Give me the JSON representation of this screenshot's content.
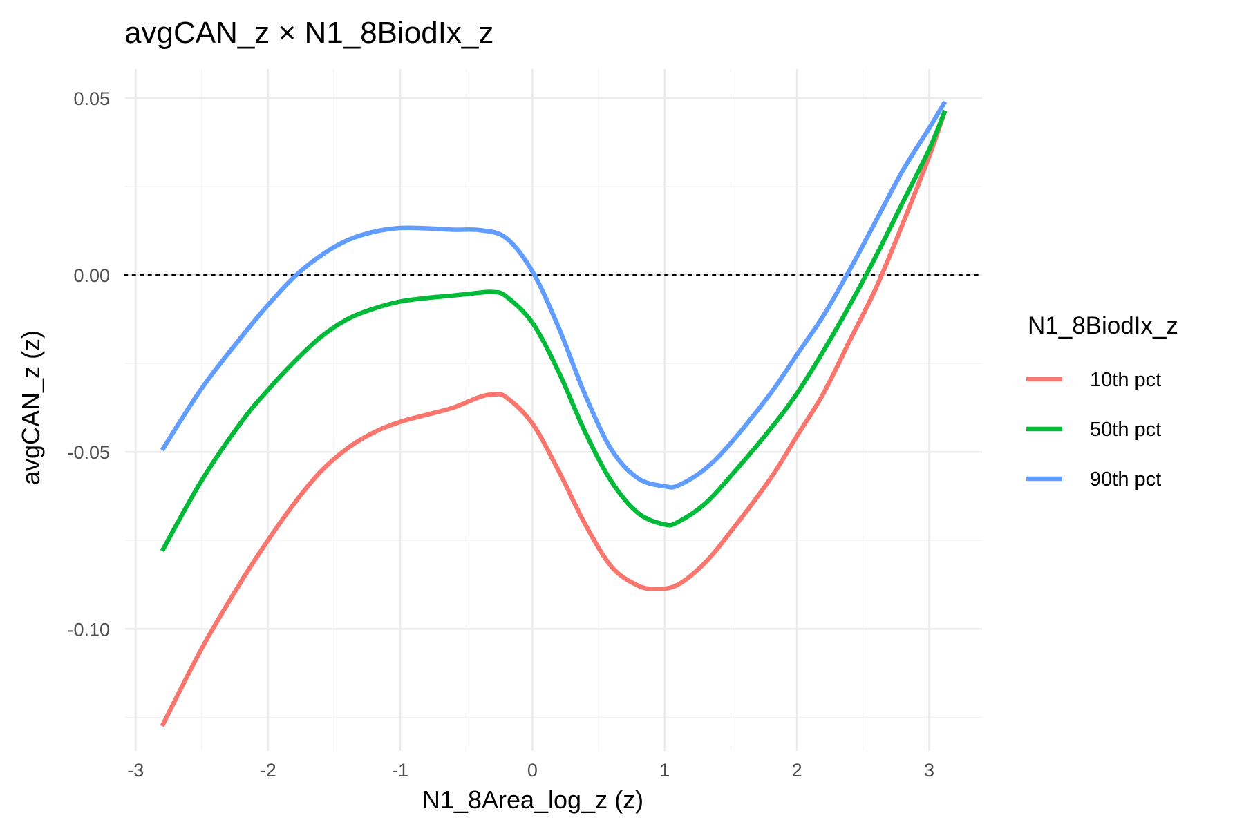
{
  "chart_data": {
    "type": "line",
    "title": "avgCAN_z × N1_8BiodIx_z",
    "xlabel": "N1_8Area_log_z (z)",
    "ylabel": "avgCAN_z (z)",
    "xlim": [
      -3.08,
      3.4
    ],
    "ylim": [
      -0.1345,
      0.0582
    ],
    "x_ticks": [
      -3,
      -2,
      -1,
      0,
      1,
      2,
      3
    ],
    "x_tick_labels": [
      "-3",
      "-2",
      "-1",
      "0",
      "1",
      "2",
      "3"
    ],
    "y_ticks": [
      -0.1,
      -0.05,
      0.0,
      0.05
    ],
    "y_tick_labels": [
      "-0.10",
      "-0.05",
      "0.00",
      "0.05"
    ],
    "grid": true,
    "reference_line": {
      "y": 0.0,
      "style": "dotted",
      "color": "#000000"
    },
    "legend": {
      "title": "N1_8BiodIx_z",
      "placement": "right",
      "entries": [
        "10th pct",
        "50th pct",
        "90th pct"
      ]
    },
    "series": [
      {
        "name": "10th pct",
        "color": "#F8766D",
        "x": [
          -2.8,
          -2.5,
          -2.2,
          -2.0,
          -1.8,
          -1.6,
          -1.4,
          -1.2,
          -1.0,
          -0.8,
          -0.6,
          -0.4,
          -0.3,
          -0.2,
          0.0,
          0.2,
          0.4,
          0.6,
          0.8,
          0.95,
          1.1,
          1.3,
          1.5,
          1.8,
          2.0,
          2.2,
          2.4,
          2.6,
          2.8,
          3.0,
          3.12
        ],
        "y": [
          -0.1275,
          -0.1055,
          -0.0865,
          -0.075,
          -0.0645,
          -0.0555,
          -0.049,
          -0.0445,
          -0.0415,
          -0.0395,
          -0.0375,
          -0.0345,
          -0.0338,
          -0.0345,
          -0.042,
          -0.0555,
          -0.0705,
          -0.0825,
          -0.0878,
          -0.0887,
          -0.0875,
          -0.0815,
          -0.0725,
          -0.0575,
          -0.0455,
          -0.0335,
          -0.0185,
          -0.0035,
          0.0145,
          0.0335,
          0.0465
        ]
      },
      {
        "name": "50th pct",
        "color": "#00BA38",
        "x": [
          -2.8,
          -2.5,
          -2.2,
          -2.0,
          -1.8,
          -1.6,
          -1.4,
          -1.2,
          -1.0,
          -0.8,
          -0.6,
          -0.4,
          -0.3,
          -0.2,
          0.0,
          0.2,
          0.4,
          0.6,
          0.8,
          1.0,
          1.1,
          1.3,
          1.5,
          1.8,
          2.0,
          2.2,
          2.4,
          2.6,
          2.8,
          3.0,
          3.12
        ],
        "y": [
          -0.078,
          -0.058,
          -0.0415,
          -0.0325,
          -0.0245,
          -0.0175,
          -0.0125,
          -0.0095,
          -0.0075,
          -0.0065,
          -0.0058,
          -0.005,
          -0.0048,
          -0.006,
          -0.0135,
          -0.0275,
          -0.0445,
          -0.0585,
          -0.0673,
          -0.0705,
          -0.0698,
          -0.0648,
          -0.0568,
          -0.0435,
          -0.0335,
          -0.0215,
          -0.0085,
          0.0055,
          0.0205,
          0.0355,
          0.0465
        ]
      },
      {
        "name": "90th pct",
        "color": "#619CFF",
        "x": [
          -2.8,
          -2.5,
          -2.2,
          -2.0,
          -1.8,
          -1.6,
          -1.4,
          -1.2,
          -1.0,
          -0.8,
          -0.6,
          -0.4,
          -0.2,
          0.0,
          0.2,
          0.4,
          0.6,
          0.8,
          1.0,
          1.1,
          1.3,
          1.5,
          1.8,
          2.0,
          2.2,
          2.4,
          2.6,
          2.8,
          3.0,
          3.12
        ],
        "y": [
          -0.0495,
          -0.032,
          -0.0175,
          -0.0085,
          -0.0005,
          0.0055,
          0.0098,
          0.0122,
          0.0133,
          0.0132,
          0.0128,
          0.0127,
          0.0105,
          0.001,
          -0.015,
          -0.034,
          -0.0495,
          -0.0575,
          -0.0597,
          -0.0595,
          -0.055,
          -0.0475,
          -0.0335,
          -0.0225,
          -0.0115,
          0.0015,
          0.0155,
          0.0295,
          0.0415,
          0.049
        ]
      }
    ]
  }
}
